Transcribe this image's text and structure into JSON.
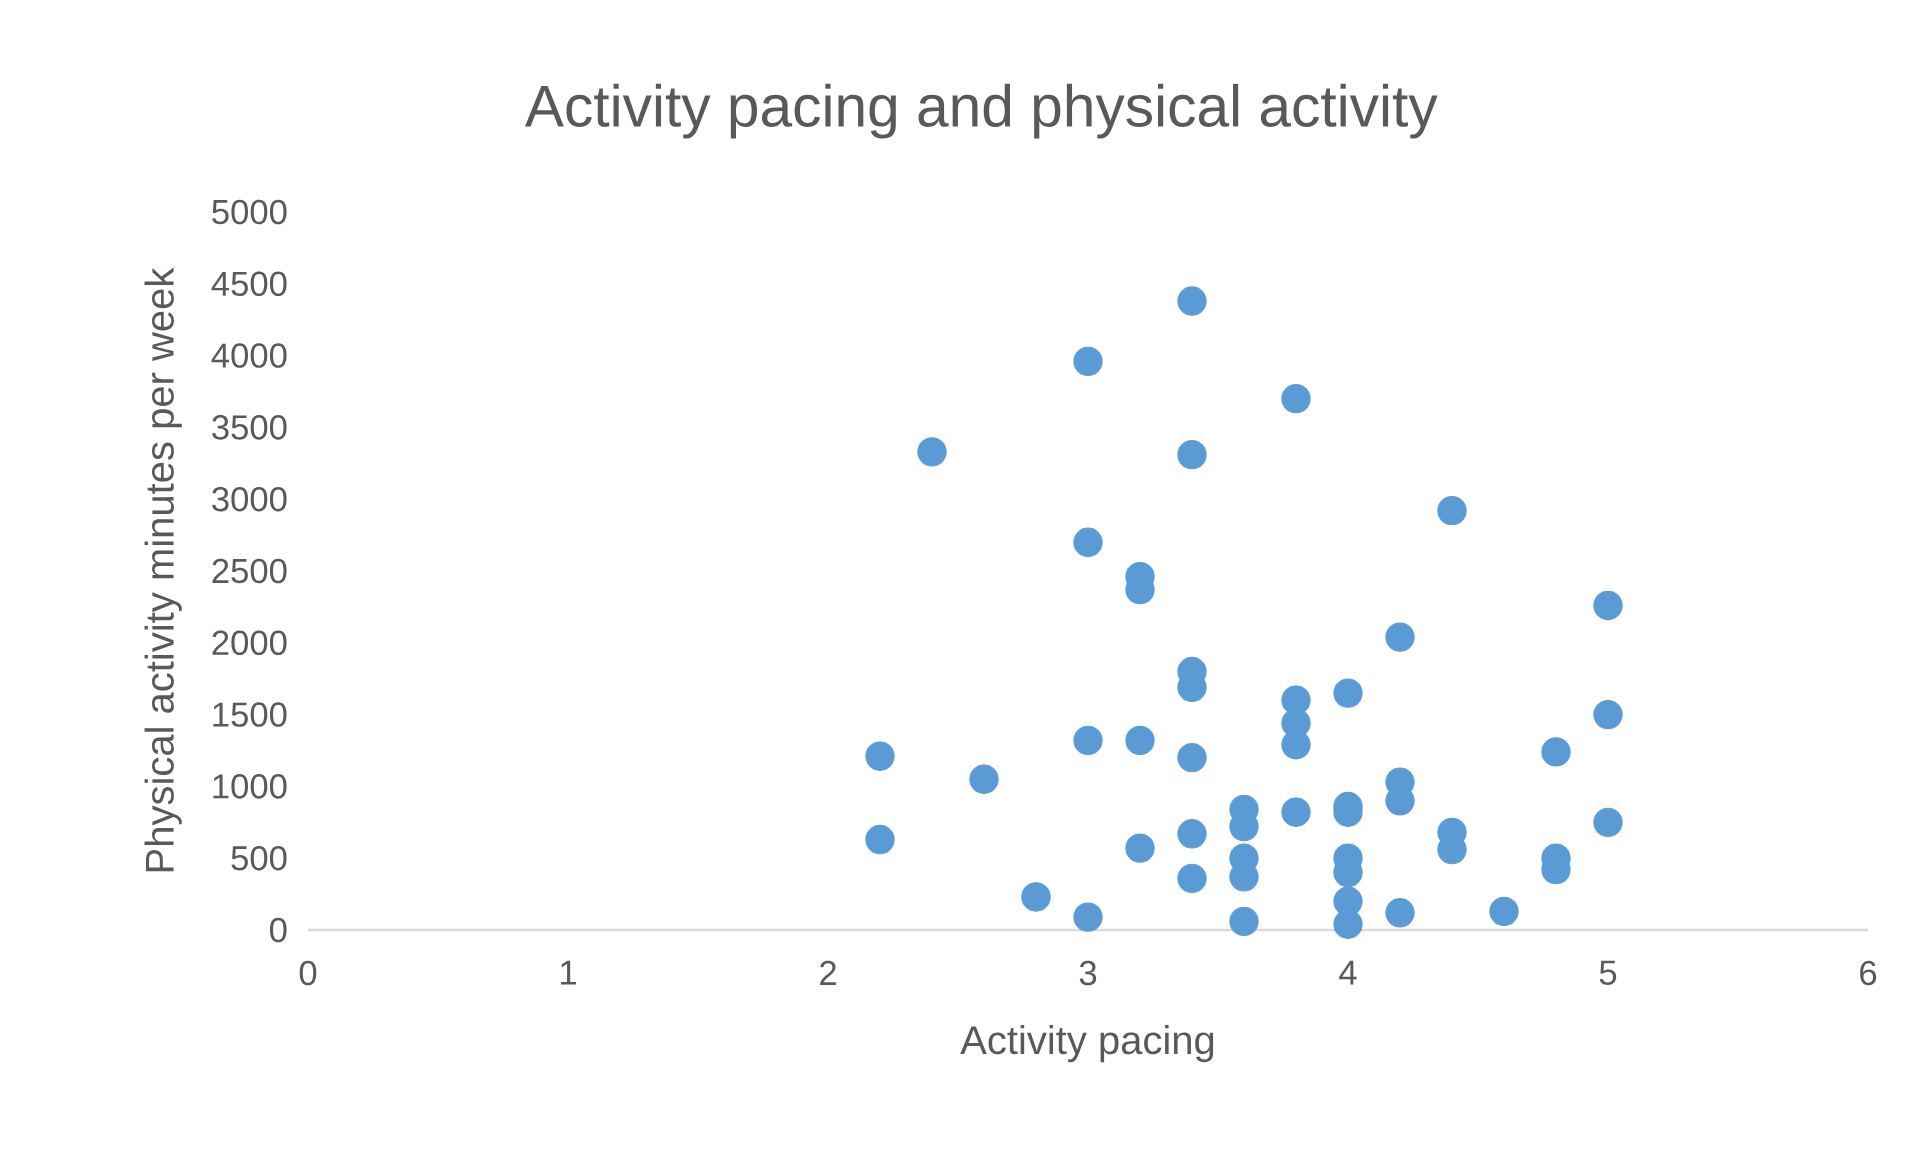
{
  "chart_data": {
    "type": "scatter",
    "title": "Activity pacing and physical activity",
    "xlabel": "Activity pacing",
    "ylabel": "Physical activity minutes per week",
    "x": [
      3.4,
      3.0,
      3.8,
      2.4,
      3.4,
      4.4,
      3.0,
      3.2,
      3.2,
      4.2,
      5.0,
      2.2,
      2.2,
      2.6,
      2.8,
      3.0,
      3.0,
      3.2,
      3.2,
      3.4,
      3.4,
      3.4,
      3.4,
      3.4,
      3.6,
      3.6,
      3.6,
      3.6,
      3.6,
      3.8,
      3.8,
      3.8,
      3.8,
      4.0,
      4.0,
      4.0,
      4.0,
      4.0,
      4.0,
      4.0,
      4.2,
      4.2,
      4.2,
      4.4,
      4.4,
      4.6,
      4.8,
      4.8,
      4.8,
      5.0,
      5.0
    ],
    "values": [
      4380,
      3960,
      3700,
      3330,
      3310,
      2920,
      2700,
      2460,
      2370,
      2040,
      2260,
      1210,
      630,
      1050,
      230,
      1320,
      90,
      1320,
      570,
      1800,
      1690,
      1200,
      670,
      360,
      840,
      720,
      500,
      370,
      60,
      1600,
      1440,
      1290,
      820,
      1650,
      860,
      820,
      500,
      400,
      200,
      40,
      1030,
      900,
      120,
      680,
      560,
      130,
      1240,
      500,
      420,
      1500,
      750
    ],
    "color": "#5b9bd5",
    "xlim": [
      0,
      6
    ],
    "xticks": [
      0,
      1,
      2,
      3,
      4,
      5,
      6
    ],
    "ylim": [
      0,
      5000
    ],
    "yticks": [
      0,
      500,
      1000,
      1500,
      2000,
      2500,
      3000,
      3500,
      4000,
      4500,
      5000
    ],
    "grid": false,
    "legend": false
  }
}
